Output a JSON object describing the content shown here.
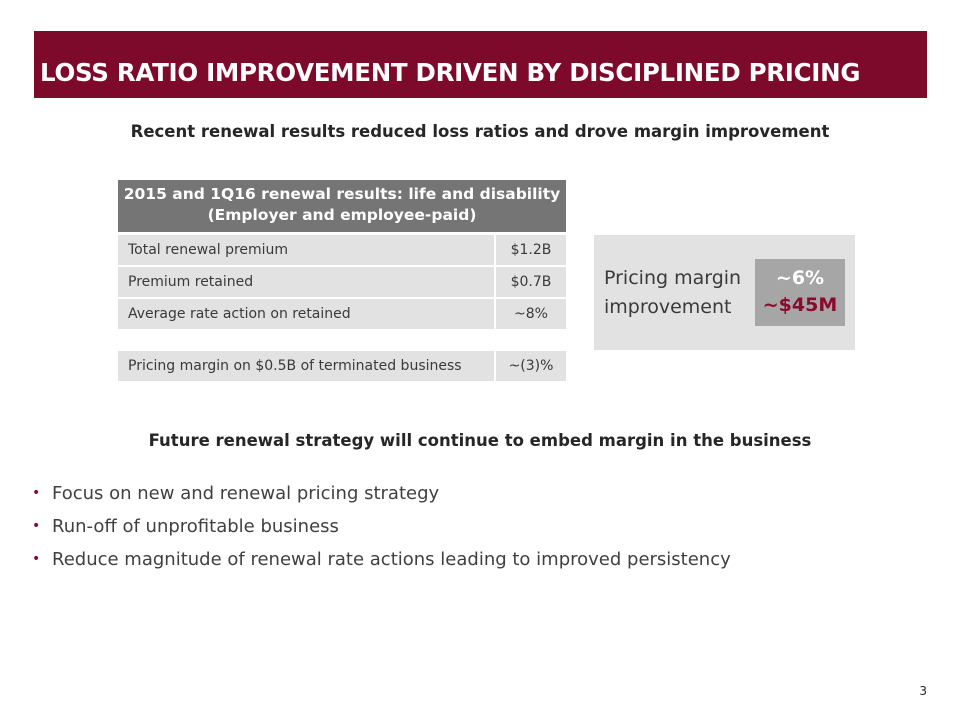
{
  "title": "LOSS RATIO IMPROVEMENT DRIVEN BY DISCIPLINED PRICING",
  "subtitle_recent": "Recent renewal results reduced loss ratios and drove margin improvement",
  "table": {
    "header_line1": "2015 and 1Q16 renewal results: life and disability",
    "header_line2": "(Employer and employee-paid)",
    "rows": [
      {
        "label": "Total renewal premium",
        "value": "$1.2B"
      },
      {
        "label": "Premium retained",
        "value": "$0.7B"
      },
      {
        "label": "Average rate action on retained",
        "value": "~8%"
      },
      {
        "label": "Pricing margin on $0.5B of terminated business",
        "value": "~(3)%"
      }
    ]
  },
  "pricing_margin": {
    "label_line1": "Pricing margin",
    "label_line2": "improvement",
    "value_percent": "~6%",
    "value_amount": "~$45M",
    "colors": {
      "value_box": "#a6a6a6",
      "amount": "#8b0a2c"
    }
  },
  "subtitle_future": "Future renewal strategy will continue to embed margin in the business",
  "bullets": [
    "Focus on new and renewal pricing strategy",
    "Run-off of unprofitable business",
    "Reduce magnitude of renewal rate actions leading to improved persistency"
  ],
  "page_number": "3",
  "colors": {
    "title_bar": "#7d0a2a",
    "bullet": "#8b0a2c",
    "table_header": "#757575",
    "table_cell": "#e2e2e2"
  }
}
